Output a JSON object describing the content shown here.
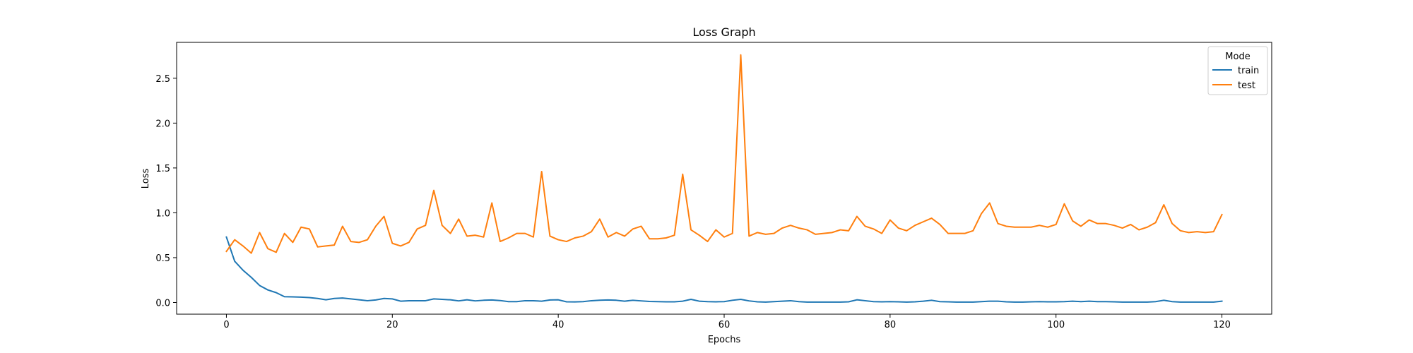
{
  "chart_data": {
    "type": "line",
    "title": "Loss Graph",
    "xlabel": "Epochs",
    "ylabel": "Loss",
    "xlim": [
      -6,
      126
    ],
    "ylim": [
      -0.13,
      2.9
    ],
    "xticks": [
      0,
      20,
      40,
      60,
      80,
      100,
      120
    ],
    "yticks": [
      0.0,
      0.5,
      1.0,
      1.5,
      2.0,
      2.5
    ],
    "xtick_labels": [
      "0",
      "20",
      "40",
      "60",
      "80",
      "100",
      "120"
    ],
    "ytick_labels": [
      "0.0",
      "0.5",
      "1.0",
      "1.5",
      "2.0",
      "2.5"
    ],
    "grid": false,
    "legend": {
      "title": "Mode",
      "placement": "top-right"
    },
    "x": [
      0,
      1,
      2,
      3,
      4,
      5,
      6,
      7,
      8,
      9,
      10,
      11,
      12,
      13,
      14,
      15,
      16,
      17,
      18,
      19,
      20,
      21,
      22,
      23,
      24,
      25,
      26,
      27,
      28,
      29,
      30,
      31,
      32,
      33,
      34,
      35,
      36,
      37,
      38,
      39,
      40,
      41,
      42,
      43,
      44,
      45,
      46,
      47,
      48,
      49,
      50,
      51,
      52,
      53,
      54,
      55,
      56,
      57,
      58,
      59,
      60,
      61,
      62,
      63,
      64,
      65,
      66,
      67,
      68,
      69,
      70,
      71,
      72,
      73,
      74,
      75,
      76,
      77,
      78,
      79,
      80,
      81,
      82,
      83,
      84,
      85,
      86,
      87,
      88,
      89,
      90,
      91,
      92,
      93,
      94,
      95,
      96,
      97,
      98,
      99,
      100,
      101,
      102,
      103,
      104,
      105,
      106,
      107,
      108,
      109,
      110,
      111,
      112,
      113,
      114,
      115,
      116,
      117,
      118,
      119,
      120
    ],
    "series": [
      {
        "name": "train",
        "color": "#1f77b4",
        "values": [
          0.73,
          0.46,
          0.36,
          0.28,
          0.19,
          0.14,
          0.11,
          0.065,
          0.063,
          0.06,
          0.055,
          0.045,
          0.03,
          0.045,
          0.05,
          0.04,
          0.03,
          0.02,
          0.028,
          0.045,
          0.04,
          0.015,
          0.02,
          0.02,
          0.02,
          0.04,
          0.035,
          0.03,
          0.018,
          0.03,
          0.018,
          0.025,
          0.028,
          0.022,
          0.01,
          0.01,
          0.02,
          0.02,
          0.015,
          0.028,
          0.03,
          0.008,
          0.007,
          0.01,
          0.02,
          0.025,
          0.028,
          0.025,
          0.015,
          0.025,
          0.018,
          0.012,
          0.01,
          0.008,
          0.008,
          0.015,
          0.035,
          0.015,
          0.01,
          0.008,
          0.01,
          0.025,
          0.035,
          0.018,
          0.008,
          0.005,
          0.01,
          0.015,
          0.02,
          0.01,
          0.005,
          0.005,
          0.005,
          0.005,
          0.005,
          0.008,
          0.03,
          0.02,
          0.01,
          0.008,
          0.01,
          0.008,
          0.005,
          0.008,
          0.015,
          0.025,
          0.01,
          0.008,
          0.005,
          0.005,
          0.005,
          0.01,
          0.015,
          0.015,
          0.008,
          0.005,
          0.005,
          0.008,
          0.01,
          0.008,
          0.008,
          0.01,
          0.015,
          0.01,
          0.015,
          0.01,
          0.01,
          0.008,
          0.005,
          0.005,
          0.005,
          0.005,
          0.01,
          0.025,
          0.01,
          0.005,
          0.005,
          0.005,
          0.005,
          0.005,
          0.015
        ]
      },
      {
        "name": "test",
        "color": "#ff7f0e",
        "values": [
          0.57,
          0.7,
          0.63,
          0.55,
          0.78,
          0.6,
          0.56,
          0.77,
          0.67,
          0.84,
          0.82,
          0.62,
          0.63,
          0.64,
          0.85,
          0.68,
          0.67,
          0.7,
          0.85,
          0.96,
          0.66,
          0.63,
          0.67,
          0.82,
          0.86,
          1.25,
          0.86,
          0.77,
          0.93,
          0.74,
          0.75,
          0.73,
          1.11,
          0.68,
          0.72,
          0.77,
          0.77,
          0.73,
          1.46,
          0.74,
          0.7,
          0.68,
          0.72,
          0.74,
          0.79,
          0.93,
          0.73,
          0.78,
          0.74,
          0.82,
          0.85,
          0.71,
          0.71,
          0.72,
          0.75,
          1.43,
          0.81,
          0.75,
          0.68,
          0.81,
          0.73,
          0.77,
          2.76,
          0.74,
          0.78,
          0.76,
          0.77,
          0.83,
          0.86,
          0.83,
          0.81,
          0.76,
          0.77,
          0.78,
          0.81,
          0.8,
          0.96,
          0.85,
          0.82,
          0.77,
          0.92,
          0.83,
          0.8,
          0.86,
          0.9,
          0.94,
          0.87,
          0.77,
          0.77,
          0.77,
          0.8,
          0.99,
          1.11,
          0.88,
          0.85,
          0.84,
          0.84,
          0.84,
          0.86,
          0.84,
          0.87,
          1.1,
          0.91,
          0.85,
          0.92,
          0.88,
          0.88,
          0.86,
          0.83,
          0.87,
          0.81,
          0.84,
          0.89,
          1.09,
          0.88,
          0.8,
          0.78,
          0.79,
          0.78,
          0.79,
          0.98
        ]
      }
    ]
  }
}
